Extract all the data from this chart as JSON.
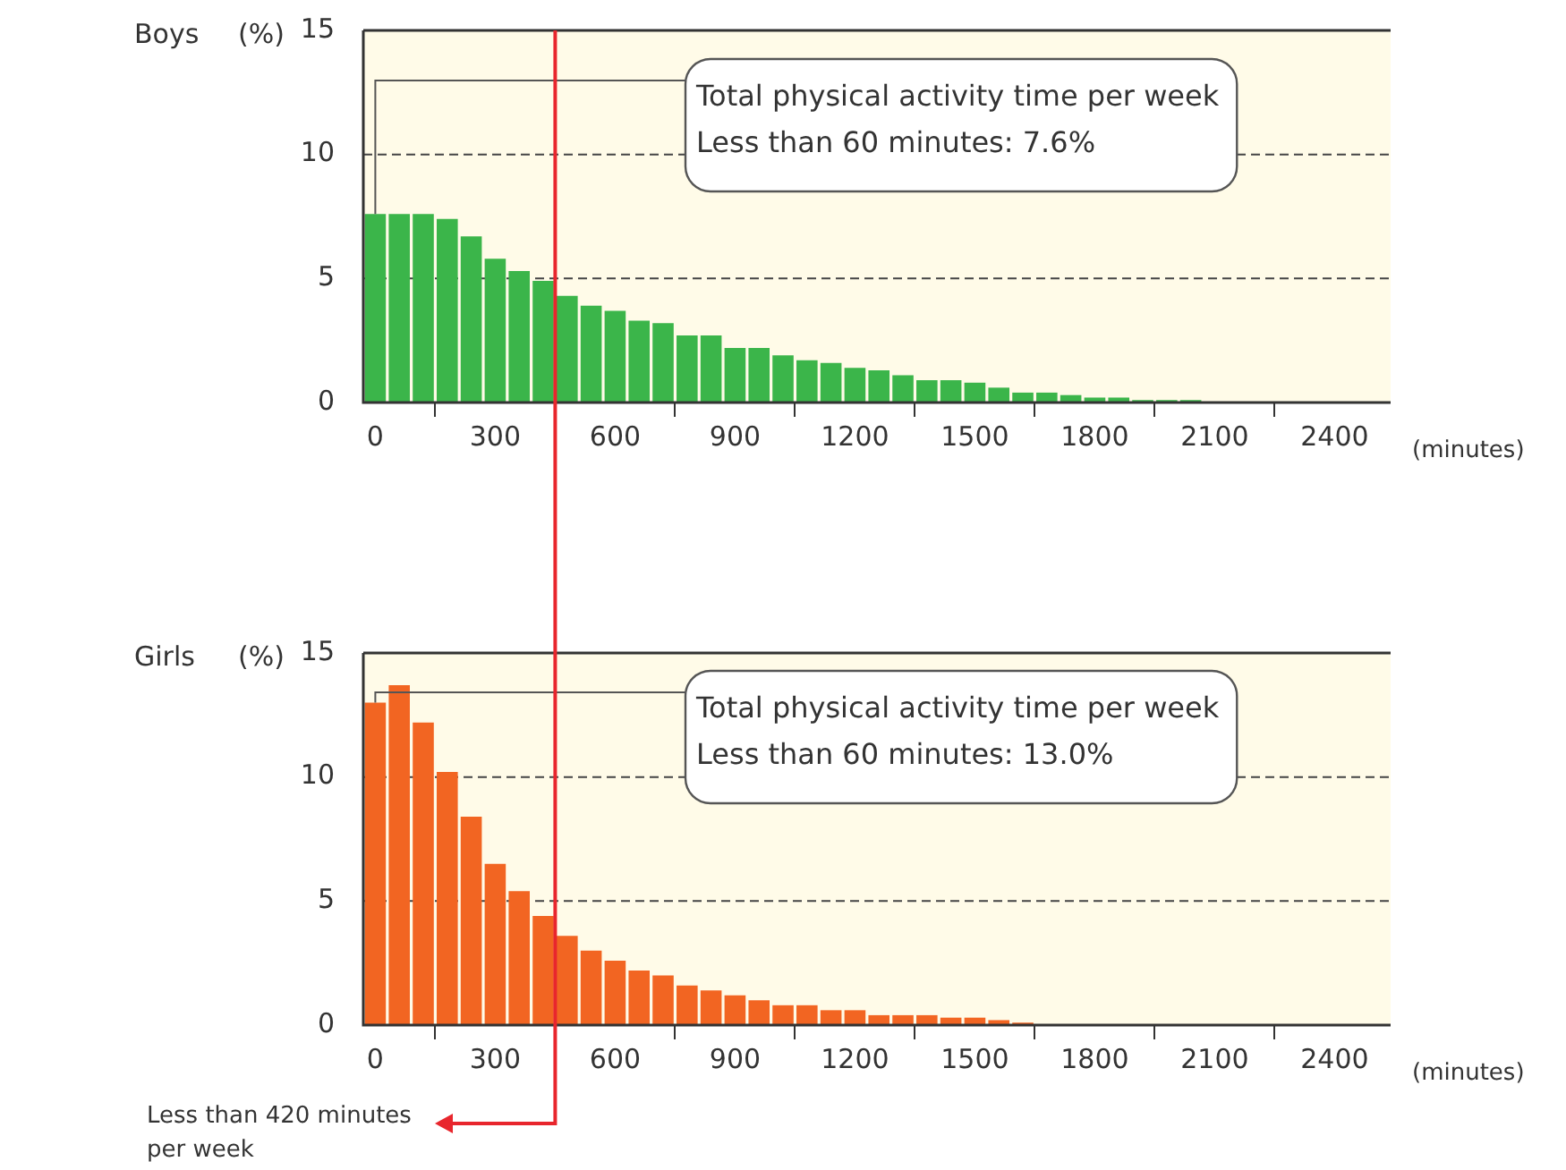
{
  "chart_data": [
    {
      "type": "histogram",
      "title": "Boys",
      "ylabel": "(%)",
      "xlabel": "(minutes)",
      "color": "#3bb54a",
      "bins": [
        -30,
        30,
        90,
        150,
        210,
        270,
        330,
        390,
        450,
        510,
        570,
        630,
        690,
        750,
        810,
        870,
        930,
        990,
        1050,
        1110,
        1170,
        1230,
        1290,
        1350,
        1410,
        1470,
        1530,
        1590,
        1650,
        1710,
        1770,
        1830,
        1890,
        1950,
        2010,
        2070
      ],
      "values": [
        7.6,
        7.6,
        7.6,
        7.4,
        6.7,
        5.8,
        5.3,
        4.9,
        4.3,
        3.9,
        3.7,
        3.3,
        3.2,
        2.7,
        2.7,
        2.2,
        2.2,
        1.9,
        1.7,
        1.6,
        1.4,
        1.3,
        1.1,
        0.9,
        0.9,
        0.8,
        0.6,
        0.4,
        0.4,
        0.3,
        0.2,
        0.2,
        0.1,
        0.1,
        0.1
      ],
      "xlim": [
        -30,
        2540
      ],
      "xticks": [
        0,
        300,
        600,
        900,
        1200,
        1500,
        1800,
        2100,
        2400
      ],
      "ylim": [
        0,
        15
      ],
      "yticks": [
        0,
        5,
        10,
        15
      ],
      "grid": "y",
      "annotations": [
        {
          "text": "Total physical activity time per week\nLess than 60 minutes: 7.6%",
          "x": 0,
          "y": 7.6
        }
      ],
      "ref_lines": [
        {
          "axis": "x",
          "value": 450,
          "color": "#e8262d"
        }
      ]
    },
    {
      "type": "histogram",
      "title": "Girls",
      "ylabel": "(%)",
      "xlabel": "(minutes)",
      "color": "#f26522",
      "bins": [
        -30,
        30,
        90,
        150,
        210,
        270,
        330,
        390,
        450,
        510,
        570,
        630,
        690,
        750,
        810,
        870,
        930,
        990,
        1050,
        1110,
        1170,
        1230,
        1290,
        1350,
        1410,
        1470,
        1530,
        1590,
        1650
      ],
      "values": [
        13.0,
        13.7,
        12.2,
        10.2,
        8.4,
        6.5,
        5.4,
        4.4,
        3.6,
        3.0,
        2.6,
        2.2,
        2.0,
        1.6,
        1.4,
        1.2,
        1.0,
        0.8,
        0.8,
        0.6,
        0.6,
        0.4,
        0.4,
        0.4,
        0.3,
        0.3,
        0.2,
        0.1
      ],
      "xlim": [
        -30,
        2540
      ],
      "xticks": [
        0,
        300,
        600,
        900,
        1200,
        1500,
        1800,
        2100,
        2400
      ],
      "ylim": [
        0,
        15
      ],
      "yticks": [
        0,
        5,
        10,
        15
      ],
      "grid": "y",
      "annotations": [
        {
          "text": "Total physical activity time per week\nLess than 60 minutes: 13.0%",
          "x": 0,
          "y": 13.0
        }
      ],
      "ref_lines": [
        {
          "axis": "x",
          "value": 450,
          "color": "#e8262d",
          "label": "Less than 420 minutes per week"
        }
      ]
    }
  ]
}
